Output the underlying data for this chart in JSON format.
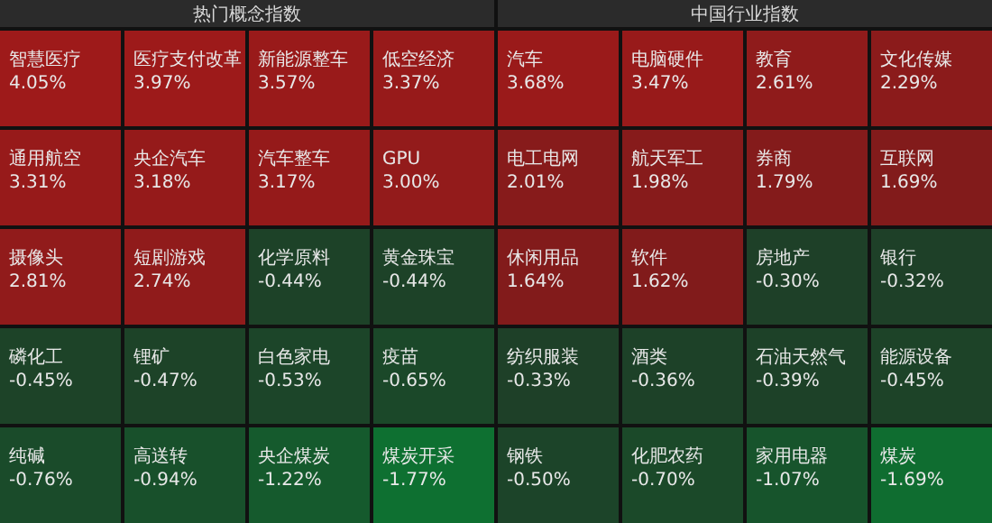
{
  "chart_data": [
    {
      "type": "other",
      "title": "热门概念指数",
      "categories": [
        "智慧医疗",
        "医疗支付改革",
        "新能源整车",
        "低空经济",
        "通用航空",
        "央企汽车",
        "汽车整车",
        "GPU",
        "摄像头",
        "短剧游戏",
        "化学原料",
        "黄金珠宝",
        "磷化工",
        "锂矿",
        "白色家电",
        "疫苗",
        "纯碱",
        "高送转",
        "央企煤炭",
        "煤炭开采"
      ],
      "values": [
        4.05,
        3.97,
        3.57,
        3.37,
        3.31,
        3.18,
        3.17,
        3.0,
        2.81,
        2.74,
        -0.44,
        -0.44,
        -0.45,
        -0.47,
        -0.53,
        -0.65,
        -0.76,
        -0.94,
        -1.22,
        -1.77
      ],
      "value_labels": [
        "4.05%",
        "3.97%",
        "3.57%",
        "3.37%",
        "3.31%",
        "3.18%",
        "3.17%",
        "3.00%",
        "2.81%",
        "2.74%",
        "-0.44%",
        "-0.44%",
        "-0.45%",
        "-0.47%",
        "-0.53%",
        "-0.65%",
        "-0.76%",
        "-0.94%",
        "-1.22%",
        "-1.77%"
      ]
    },
    {
      "type": "other",
      "title": "中国行业指数",
      "categories": [
        "汽车",
        "电脑硬件",
        "教育",
        "文化传媒",
        "电工电网",
        "航天军工",
        "券商",
        "互联网",
        "休闲用品",
        "软件",
        "房地产",
        "银行",
        "纺织服装",
        "酒类",
        "石油天然气",
        "能源设备",
        "钢铁",
        "化肥农药",
        "家用电器",
        "煤炭"
      ],
      "values": [
        3.68,
        3.47,
        2.61,
        2.29,
        2.01,
        1.98,
        1.79,
        1.69,
        1.64,
        1.62,
        -0.3,
        -0.32,
        -0.33,
        -0.36,
        -0.39,
        -0.45,
        -0.5,
        -0.7,
        -1.07,
        -1.69
      ],
      "value_labels": [
        "3.68%",
        "3.47%",
        "2.61%",
        "2.29%",
        "2.01%",
        "1.98%",
        "1.79%",
        "1.69%",
        "1.64%",
        "1.62%",
        "-0.30%",
        "-0.32%",
        "-0.33%",
        "-0.36%",
        "-0.39%",
        "-0.45%",
        "-0.50%",
        "-0.70%",
        "-1.07%",
        "-1.69%"
      ]
    }
  ]
}
